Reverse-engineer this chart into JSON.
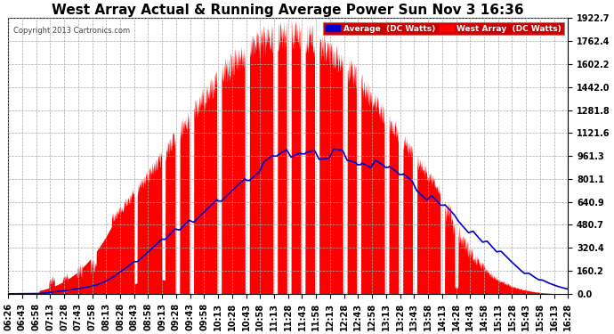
{
  "title": "West Array Actual & Running Average Power Sun Nov 3 16:36",
  "copyright": "Copyright 2013 Cartronics.com",
  "legend_avg": "Average  (DC Watts)",
  "legend_west": "West Array  (DC Watts)",
  "ylabel_values": [
    0.0,
    160.2,
    320.4,
    480.7,
    640.9,
    801.1,
    961.3,
    1121.6,
    1281.8,
    1442.0,
    1602.2,
    1762.4,
    1922.7
  ],
  "ymax": 1922.7,
  "bg_color": "#ffffff",
  "plot_bg_color": "#ffffff",
  "grid_color": "#aaaaaa",
  "red_color": "#ff0000",
  "blue_color": "#0000cc",
  "title_color": "#000000",
  "title_fontsize": 11,
  "tick_fontsize": 7,
  "x_tick_labels": [
    "06:26",
    "06:43",
    "06:58",
    "07:13",
    "07:28",
    "07:43",
    "07:58",
    "08:13",
    "08:28",
    "08:43",
    "08:58",
    "09:13",
    "09:28",
    "09:43",
    "09:58",
    "10:13",
    "10:28",
    "10:43",
    "10:58",
    "11:13",
    "11:28",
    "11:43",
    "11:58",
    "12:13",
    "12:28",
    "12:43",
    "12:58",
    "13:13",
    "13:28",
    "13:43",
    "13:58",
    "14:13",
    "14:28",
    "14:43",
    "14:58",
    "15:13",
    "15:28",
    "15:43",
    "15:58",
    "16:13",
    "16:28"
  ],
  "n_labels": 41
}
